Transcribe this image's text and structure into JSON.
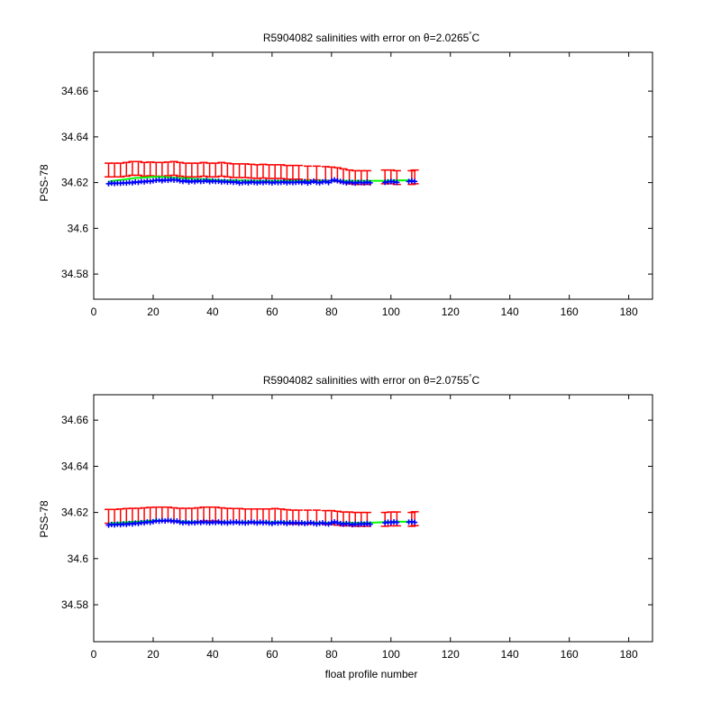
{
  "chart_data": [
    {
      "type": "scatter",
      "title": "R5904082 salinities with error on θ=2.0265°C",
      "title_main": "R5904082 salinities with error on θ=2.0265",
      "title_sup": "°",
      "title_end": "C",
      "xlabel": "",
      "ylabel": "PSS-78",
      "xlim": [
        0,
        188
      ],
      "ylim": [
        34.569,
        34.677
      ],
      "xticks": [
        0,
        20,
        40,
        60,
        80,
        100,
        120,
        140,
        160,
        180
      ],
      "yticks": [
        34.58,
        34.6,
        34.62,
        34.64,
        34.66
      ],
      "ytick_labels": [
        "34.58",
        "34.6",
        "34.62",
        "34.64",
        "34.66"
      ],
      "grid": false,
      "series": [
        {
          "role": "calibrated-with-error",
          "color": "#ff0000",
          "x": [
            5,
            7,
            9,
            11,
            13,
            15,
            17,
            19,
            21,
            23,
            25,
            27,
            29,
            31,
            33,
            35,
            37,
            39,
            41,
            43,
            45,
            47,
            49,
            51,
            53,
            55,
            57,
            59,
            61,
            63,
            65,
            67,
            69,
            72,
            75,
            78,
            80,
            82,
            84,
            86,
            88,
            90,
            92,
            98,
            100,
            102,
            107,
            108
          ],
          "y": [
            34.6255,
            34.6255,
            34.6255,
            34.6258,
            34.6262,
            34.6262,
            34.6258,
            34.626,
            34.6258,
            34.6258,
            34.626,
            34.6262,
            34.6258,
            34.6255,
            34.6255,
            34.6255,
            34.6258,
            34.6255,
            34.6255,
            34.6258,
            34.6255,
            34.6252,
            34.6252,
            34.6252,
            34.625,
            34.6248,
            34.625,
            34.6248,
            34.6248,
            34.6248,
            34.6245,
            34.6245,
            34.6245,
            34.6242,
            34.6242,
            34.624,
            34.6238,
            34.6235,
            34.623,
            34.6225,
            34.6222,
            34.6222,
            34.6222,
            34.6225,
            34.6225,
            34.6222,
            34.6222,
            34.6225
          ],
          "error": 0.003
        },
        {
          "role": "mapped-salinity",
          "color": "#00ff00",
          "x": [
            5,
            8,
            11,
            14,
            17,
            20,
            23,
            26,
            29,
            32,
            35,
            38,
            41,
            44,
            47,
            50,
            53,
            56,
            59,
            62,
            65,
            68,
            71,
            74,
            77,
            80,
            83,
            86,
            89,
            92,
            98,
            101,
            104,
            107
          ],
          "y": [
            34.6205,
            34.621,
            34.6215,
            34.622,
            34.6222,
            34.6225,
            34.6225,
            34.6222,
            34.622,
            34.6218,
            34.6215,
            34.6215,
            34.6212,
            34.621,
            34.621,
            34.621,
            34.6208,
            34.6208,
            34.6208,
            34.6208,
            34.6208,
            34.6208,
            34.6208,
            34.6208,
            34.6208,
            34.6208,
            34.6208,
            34.6208,
            34.6208,
            34.6208,
            34.6208,
            34.621,
            34.621,
            34.621
          ]
        },
        {
          "role": "uncalibrated-salinity",
          "color": "#0000ff",
          "x": [
            5,
            6,
            7,
            8,
            9,
            10,
            11,
            12,
            13,
            14,
            15,
            16,
            17,
            18,
            19,
            20,
            21,
            22,
            23,
            24,
            25,
            26,
            27,
            28,
            29,
            30,
            31,
            32,
            33,
            34,
            35,
            36,
            37,
            38,
            39,
            40,
            41,
            42,
            43,
            44,
            45,
            46,
            47,
            48,
            49,
            50,
            51,
            52,
            53,
            54,
            55,
            56,
            57,
            58,
            59,
            60,
            61,
            62,
            63,
            64,
            65,
            66,
            67,
            68,
            69,
            70,
            71,
            72,
            73,
            74,
            75,
            76,
            77,
            78,
            79,
            80,
            81,
            82,
            83,
            84,
            85,
            86,
            87,
            88,
            89,
            90,
            91,
            92,
            93,
            98,
            99,
            100,
            101,
            102,
            106,
            107,
            108
          ],
          "y": [
            34.6195,
            34.6198,
            34.6196,
            34.6198,
            34.6197,
            34.6199,
            34.6198,
            34.6201,
            34.6199,
            34.6203,
            34.6201,
            34.6205,
            34.6203,
            34.6207,
            34.6205,
            34.6208,
            34.621,
            34.6212,
            34.6208,
            34.6212,
            34.621,
            34.6213,
            34.6211,
            34.6212,
            34.6208,
            34.6205,
            34.6209,
            34.6203,
            34.6207,
            34.6204,
            34.6208,
            34.6205,
            34.6206,
            34.6209,
            34.6204,
            34.6207,
            34.6205,
            34.6206,
            34.6203,
            34.6205,
            34.6202,
            34.6204,
            34.6201,
            34.6203,
            34.6198,
            34.62,
            34.6202,
            34.6199,
            34.6203,
            34.6201,
            34.6199,
            34.6202,
            34.62,
            34.6203,
            34.6201,
            34.6199,
            34.6202,
            34.62,
            34.6201,
            34.6203,
            34.6199,
            34.6202,
            34.62,
            34.6201,
            34.6203,
            34.62,
            34.6204,
            34.6198,
            34.6202,
            34.6206,
            34.6201,
            34.6199,
            34.6203,
            34.6205,
            34.62,
            34.6208,
            34.6212,
            34.6208,
            34.6205,
            34.6202,
            34.6199,
            34.6202,
            34.62,
            34.6198,
            34.6201,
            34.62,
            34.6199,
            34.6202,
            34.6199,
            34.6201,
            34.6203,
            34.6205,
            34.6203,
            34.6201,
            34.6205,
            34.6208,
            34.6205
          ]
        }
      ]
    },
    {
      "type": "scatter",
      "title": "R5904082 salinities with error on θ=2.0755°C",
      "title_main": "R5904082 salinities with error on θ=2.0755",
      "title_sup": "°",
      "title_end": "C",
      "xlabel": "float profile number",
      "ylabel": "PSS-78",
      "xlim": [
        0,
        188
      ],
      "ylim": [
        34.564,
        34.671
      ],
      "xticks": [
        0,
        20,
        40,
        60,
        80,
        100,
        120,
        140,
        160,
        180
      ],
      "yticks": [
        34.58,
        34.6,
        34.62,
        34.64,
        34.66
      ],
      "ytick_labels": [
        "34.58",
        "34.6",
        "34.62",
        "34.64",
        "34.66"
      ],
      "grid": false,
      "series": [
        {
          "role": "calibrated-with-error",
          "color": "#ff0000",
          "x": [
            5,
            7,
            9,
            11,
            13,
            15,
            17,
            19,
            21,
            23,
            25,
            27,
            29,
            31,
            33,
            35,
            37,
            39,
            41,
            43,
            45,
            47,
            49,
            51,
            53,
            55,
            57,
            59,
            61,
            63,
            65,
            67,
            69,
            72,
            75,
            78,
            80,
            82,
            84,
            86,
            88,
            90,
            92,
            98,
            100,
            102,
            107,
            108
          ],
          "y": [
            34.6183,
            34.6183,
            34.6185,
            34.6187,
            34.6188,
            34.6188,
            34.619,
            34.6192,
            34.6193,
            34.6193,
            34.6193,
            34.619,
            34.6188,
            34.6188,
            34.6188,
            34.619,
            34.6193,
            34.6193,
            34.6193,
            34.619,
            34.6188,
            34.6187,
            34.6187,
            34.6185,
            34.6185,
            34.6185,
            34.6185,
            34.6185,
            34.6187,
            34.6185,
            34.6182,
            34.618,
            34.618,
            34.618,
            34.618,
            34.6178,
            34.6178,
            34.6175,
            34.6172,
            34.6172,
            34.617,
            34.617,
            34.617,
            34.617,
            34.6172,
            34.6172,
            34.617,
            34.6173
          ],
          "error": 0.003
        },
        {
          "role": "mapped-salinity",
          "color": "#00ff00",
          "x": [
            5,
            8,
            11,
            14,
            17,
            20,
            23,
            26,
            29,
            32,
            35,
            38,
            41,
            44,
            47,
            50,
            53,
            56,
            59,
            62,
            65,
            68,
            71,
            74,
            77,
            80,
            83,
            86,
            89,
            92,
            98,
            101,
            104,
            107
          ],
          "y": [
            34.6153,
            34.6155,
            34.6158,
            34.616,
            34.6162,
            34.6165,
            34.6165,
            34.6165,
            34.6162,
            34.616,
            34.6158,
            34.6158,
            34.6158,
            34.6158,
            34.6158,
            34.6158,
            34.6158,
            34.6158,
            34.6158,
            34.6158,
            34.6158,
            34.6155,
            34.6155,
            34.6155,
            34.6155,
            34.6155,
            34.6155,
            34.6155,
            34.6155,
            34.6155,
            34.6158,
            34.616,
            34.616,
            34.616
          ]
        },
        {
          "role": "uncalibrated-salinity",
          "color": "#0000ff",
          "x": [
            5,
            6,
            7,
            8,
            9,
            10,
            11,
            12,
            13,
            14,
            15,
            16,
            17,
            18,
            19,
            20,
            21,
            22,
            23,
            24,
            25,
            26,
            27,
            28,
            29,
            30,
            31,
            32,
            33,
            34,
            35,
            36,
            37,
            38,
            39,
            40,
            41,
            42,
            43,
            44,
            45,
            46,
            47,
            48,
            49,
            50,
            51,
            52,
            53,
            54,
            55,
            56,
            57,
            58,
            59,
            60,
            61,
            62,
            63,
            64,
            65,
            66,
            67,
            68,
            69,
            70,
            71,
            72,
            73,
            74,
            75,
            76,
            77,
            78,
            79,
            80,
            81,
            82,
            83,
            84,
            85,
            86,
            87,
            88,
            89,
            90,
            91,
            92,
            93,
            98,
            99,
            100,
            101,
            102,
            106,
            107,
            108
          ],
          "y": [
            34.6145,
            34.6148,
            34.6146,
            34.6149,
            34.6147,
            34.615,
            34.6148,
            34.6152,
            34.615,
            34.6154,
            34.6152,
            34.6156,
            34.6155,
            34.6159,
            34.6157,
            34.616,
            34.6164,
            34.6162,
            34.6165,
            34.6163,
            34.6166,
            34.6164,
            34.6161,
            34.6163,
            34.6158,
            34.6155,
            34.6158,
            34.6154,
            34.6157,
            34.6155,
            34.6158,
            34.6156,
            34.6159,
            34.6157,
            34.6155,
            34.6158,
            34.6156,
            34.6159,
            34.6155,
            34.6157,
            34.6154,
            34.6158,
            34.6156,
            34.6159,
            34.6155,
            34.6157,
            34.6154,
            34.6156,
            34.6159,
            34.6157,
            34.6154,
            34.6158,
            34.6155,
            34.6157,
            34.6154,
            34.6152,
            34.6156,
            34.6154,
            34.6157,
            34.6155,
            34.6152,
            34.6156,
            34.6154,
            34.6156,
            34.6153,
            34.6155,
            34.6152,
            34.6154,
            34.6156,
            34.6153,
            34.615,
            34.6153,
            34.6155,
            34.6152,
            34.615,
            34.6155,
            34.6159,
            34.6155,
            34.6152,
            34.6149,
            34.6152,
            34.615,
            34.6147,
            34.615,
            34.6148,
            34.6151,
            34.6149,
            34.6152,
            34.6149,
            34.6155,
            34.6158,
            34.6156,
            34.6159,
            34.6157,
            34.6158,
            34.616,
            34.6157
          ]
        }
      ]
    }
  ]
}
